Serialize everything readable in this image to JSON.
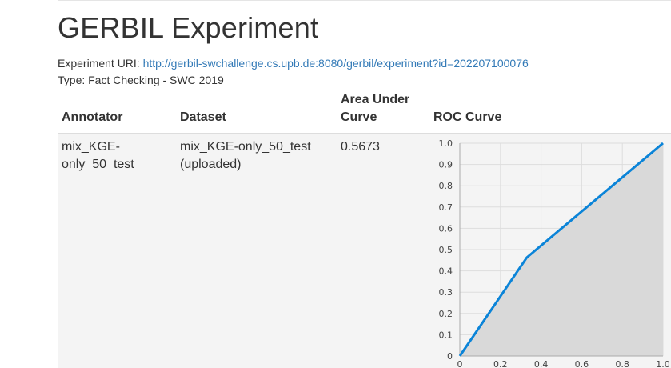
{
  "page_title": "GERBIL Experiment",
  "experiment_uri_label": "Experiment URI:",
  "experiment_uri": "http://gerbil-swchallenge.cs.upb.de:8080/gerbil/experiment?id=202207100076",
  "type_line": "Type: Fact Checking - SWC 2019",
  "table": {
    "headers": {
      "annotator": "Annotator",
      "dataset": "Dataset",
      "auc_line1": "Area Under",
      "auc_line2": "Curve",
      "roc": "ROC Curve"
    },
    "rows": [
      {
        "annotator_line1": "mix_KGE-",
        "annotator_line2": "only_50_test",
        "dataset_line1": "mix_KGE-only_50_test",
        "dataset_line2": "(uploaded)",
        "auc": "0.5673"
      }
    ]
  },
  "chart_data": {
    "type": "area",
    "x": [
      0,
      0.33,
      1.0
    ],
    "y": [
      0,
      0.463,
      1.0
    ],
    "xlim": [
      0,
      1
    ],
    "ylim": [
      0,
      1
    ],
    "y_ticks": [
      "0",
      "0.1",
      "0.2",
      "0.3",
      "0.4",
      "0.5",
      "0.6",
      "0.7",
      "0.8",
      "0.9",
      "1.0"
    ],
    "x_ticks": [
      "0",
      "0.2",
      "0.4",
      "0.6",
      "0.8",
      "1.0"
    ],
    "grid": true,
    "line_color": "#0b84d8",
    "fill_color": "#d9d9d9"
  }
}
